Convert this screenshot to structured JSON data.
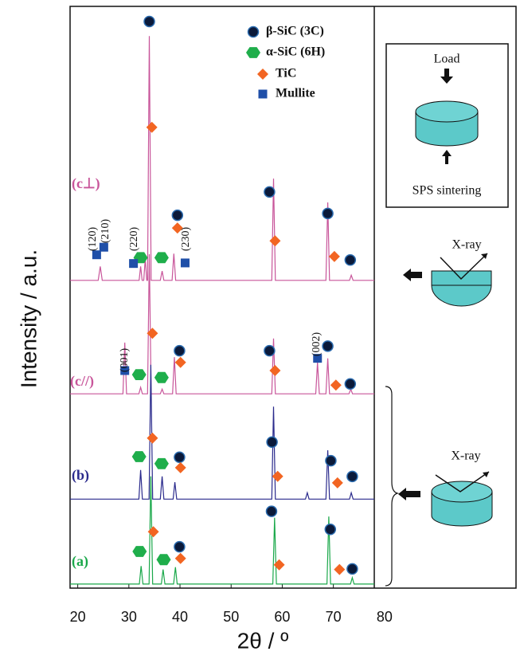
{
  "chart_data": {
    "type": "line",
    "xlabel": "2θ / º",
    "ylabel": "Intensity / a.u.",
    "xlim": [
      18.5,
      78
    ],
    "xticks": [
      20,
      30,
      40,
      50,
      60,
      70,
      80
    ],
    "ylim": [
      0,
      100
    ],
    "series": [
      {
        "name": "(c⊥)",
        "color": "#c8559a",
        "x": [
          18.5,
          24.0,
          24.4,
          24.8,
          32.0,
          32.3,
          32.6,
          32.9,
          33.2,
          33.5,
          33.65,
          34.0,
          34.35,
          36.15,
          36.5,
          36.85,
          38.45,
          38.8,
          39.15,
          57.95,
          58.3,
          58.65,
          68.55,
          68.9,
          69.25,
          73.15,
          73.5,
          73.85,
          78
        ],
        "values": [
          52.9,
          52.9,
          55.3,
          52.9,
          52.9,
          55.3,
          52.9,
          52.9,
          56.6,
          52.9,
          52.9,
          94.9,
          52.9,
          52.9,
          54.5,
          52.9,
          52.9,
          57.5,
          52.9,
          52.9,
          70.4,
          52.9,
          52.9,
          66.3,
          52.9,
          52.9,
          53.8,
          52.9,
          52.9
        ]
      },
      {
        "name": "(c//)",
        "color": "#c8559a",
        "x": [
          18.5,
          28.85,
          29.2,
          29.55,
          31.95,
          32.3,
          32.65,
          33.65,
          34.0,
          34.35,
          36.15,
          36.5,
          36.85,
          38.55,
          38.9,
          39.25,
          57.95,
          58.3,
          58.65,
          66.55,
          66.9,
          67.25,
          68.55,
          68.9,
          69.25,
          73.05,
          73.4,
          73.75,
          78
        ],
        "values": [
          33.4,
          33.4,
          42.2,
          33.4,
          33.4,
          34.5,
          33.4,
          33.4,
          57.4,
          33.4,
          33.4,
          34.2,
          33.4,
          33.4,
          39.7,
          33.4,
          33.4,
          42.9,
          33.4,
          33.4,
          38.8,
          33.4,
          33.4,
          39.5,
          33.4,
          33.4,
          34.2,
          33.4,
          33.4
        ]
      },
      {
        "name": "(b)",
        "color": "#2a2a8c",
        "x": [
          18.5,
          31.95,
          32.3,
          32.65,
          33.95,
          34.3,
          34.65,
          36.15,
          36.5,
          36.85,
          38.65,
          39.0,
          39.35,
          57.95,
          58.3,
          58.65,
          64.55,
          64.9,
          65.25,
          68.55,
          68.9,
          69.25,
          73.15,
          73.5,
          73.85,
          78
        ],
        "values": [
          15.3,
          15.3,
          20.3,
          15.3,
          15.3,
          38.4,
          15.3,
          15.3,
          19.2,
          15.3,
          15.3,
          18.2,
          15.3,
          15.3,
          31.2,
          15.3,
          15.3,
          16.4,
          15.3,
          15.3,
          23.7,
          15.3,
          15.3,
          16.4,
          15.3,
          15.3
        ]
      },
      {
        "name": "(a)",
        "color": "#1aa84a",
        "x": [
          18.5,
          32.05,
          32.4,
          32.75,
          33.95,
          34.3,
          34.65,
          36.35,
          36.7,
          37.05,
          38.75,
          39.1,
          39.45,
          58.15,
          58.5,
          58.85,
          68.75,
          69.1,
          69.45,
          73.35,
          73.7,
          74.05,
          78
        ],
        "values": [
          0.7,
          0.7,
          3.8,
          0.7,
          0.7,
          19.2,
          0.7,
          0.7,
          3.2,
          0.7,
          0.7,
          3.6,
          0.7,
          0.7,
          12.1,
          0.7,
          0.7,
          12.3,
          0.7,
          0.7,
          1.8,
          0.7,
          0.7
        ]
      }
    ],
    "phases": [
      {
        "name": "β-SiC (3C)",
        "marker": "circle",
        "color": "#0b1a3a",
        "x": [
          34.0,
          39.5,
          57.5,
          68.9,
          73.3,
          39.9,
          57.5,
          68.9,
          73.3,
          39.9,
          58.0,
          69.5,
          73.7,
          39.9,
          57.9,
          69.4,
          73.7
        ],
        "values": [
          97.4,
          64.1,
          68.1,
          64.4,
          56.4,
          40.8,
          40.8,
          41.6,
          35.1,
          22.5,
          25.1,
          21.9,
          19.2,
          7.1,
          13.2,
          10.1,
          3.3
        ]
      },
      {
        "name": "α-SiC (6H)",
        "marker": "hexagon",
        "color": "#1fae4b",
        "x": [
          32.3,
          36.4,
          32.0,
          36.4,
          32.0,
          36.4,
          32.1,
          36.8
        ],
        "values": [
          56.8,
          56.8,
          36.7,
          36.2,
          22.6,
          21.4,
          6.3,
          4.9
        ]
      },
      {
        "name": "TiC",
        "marker": "diamond",
        "color": "#f26522",
        "x": [
          34.5,
          39.5,
          58.6,
          70.2,
          34.6,
          40.1,
          58.6,
          70.5,
          34.6,
          40.1,
          59.1,
          70.8,
          34.8,
          40.1,
          59.4,
          71.2
        ],
        "values": [
          79.2,
          61.9,
          59.7,
          57.0,
          43.8,
          38.8,
          37.4,
          34.9,
          25.8,
          20.7,
          19.2,
          18.1,
          9.7,
          5.1,
          4.0,
          3.2
        ]
      },
      {
        "name": "Mullite",
        "marker": "square",
        "color": "#1f4fa8",
        "x": [
          23.7,
          25.1,
          30.9,
          41.0,
          29.2,
          66.9
        ],
        "values": [
          57.3,
          58.6,
          55.8,
          55.9,
          37.4,
          39.5
        ]
      }
    ],
    "annotations": [
      "(120)",
      "(210)",
      "(220)",
      "(230)",
      "(001)",
      "(002)"
    ]
  },
  "diagram": {
    "load": "Load",
    "sps": "SPS sintering",
    "xray_top": "X-ray",
    "xray_bottom": "X-ray"
  }
}
